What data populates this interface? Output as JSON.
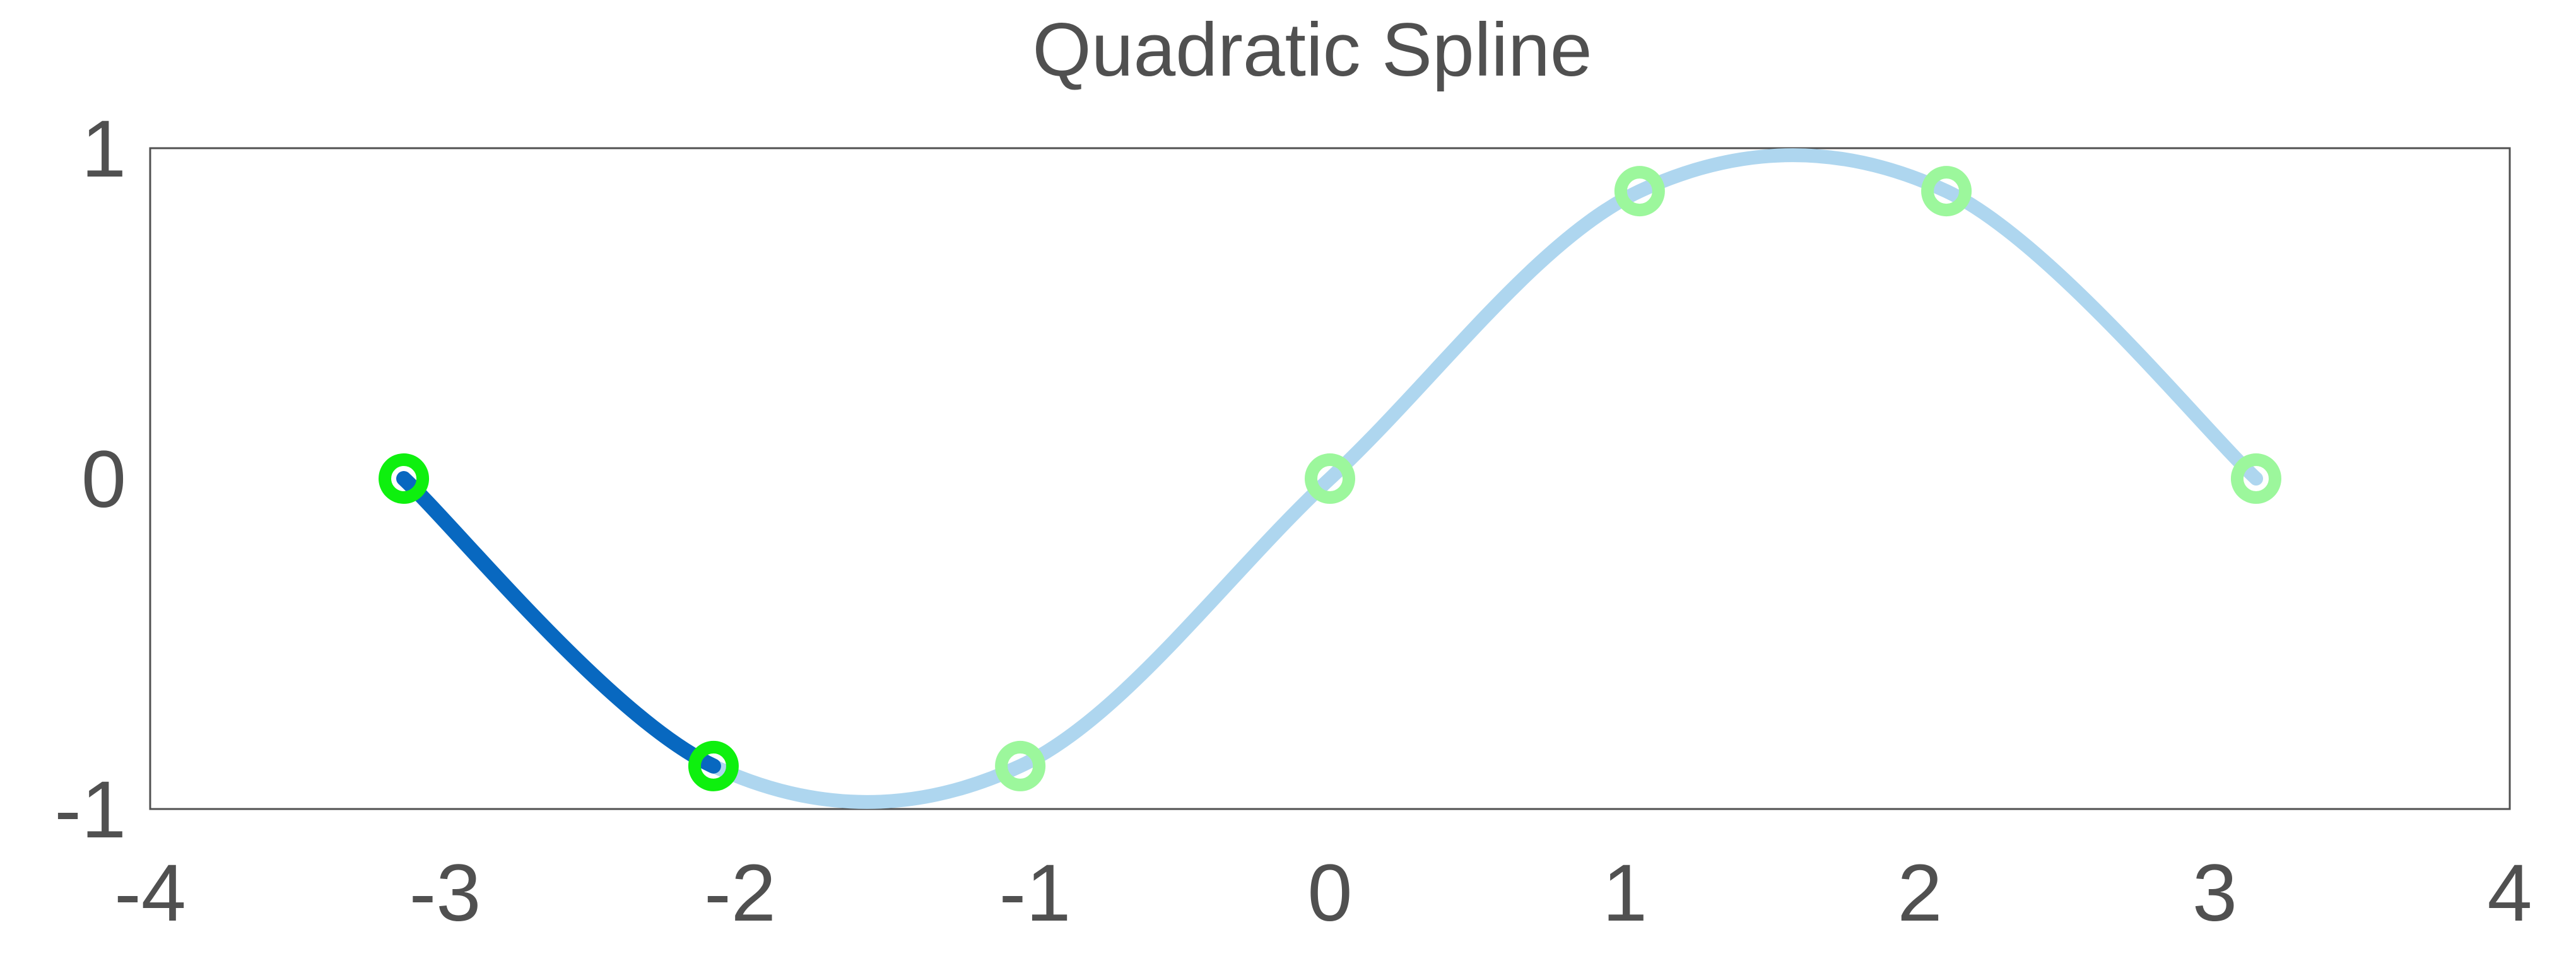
{
  "chart_data": {
    "type": "line",
    "title": "Quadratic Spline",
    "xlabel": "",
    "ylabel": "",
    "xlim": [
      -4,
      4
    ],
    "ylim": [
      -1,
      1
    ],
    "xticks": [
      "-4",
      "-3",
      "-2",
      "-1",
      "0",
      "1",
      "2",
      "3",
      "4"
    ],
    "yticks": [
      "-1",
      "0",
      "1"
    ],
    "grid": false,
    "knots": {
      "x": [
        -3.14,
        -2.09,
        -1.05,
        0.0,
        1.05,
        2.09,
        3.14
      ],
      "y": [
        0.0,
        -0.87,
        -0.87,
        0.0,
        0.87,
        0.87,
        0.0
      ]
    },
    "highlighted_segment": {
      "from_knot": 0,
      "to_knot": 1
    },
    "colors": {
      "full_curve": "#aed6ef",
      "highlighted_curve": "#0868c0",
      "knot_marker": "#9cf79c",
      "highlighted_knot_marker": "#0ef00e",
      "frame": "#505050",
      "text": "#505050"
    }
  }
}
